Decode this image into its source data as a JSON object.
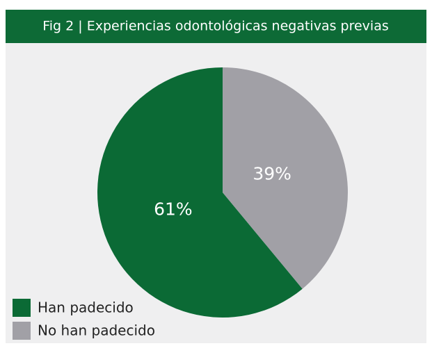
{
  "chart_data": {
    "type": "pie",
    "title": "Fig 2 | Experiencias odontológicas negativas previas",
    "categories": [
      "Han padecido",
      "No han padecido"
    ],
    "values": [
      61,
      39
    ],
    "value_labels": [
      "61%",
      "39%"
    ],
    "colors": [
      "#0b6a35",
      "#a1a0a6"
    ],
    "legend": "bottom-left"
  }
}
